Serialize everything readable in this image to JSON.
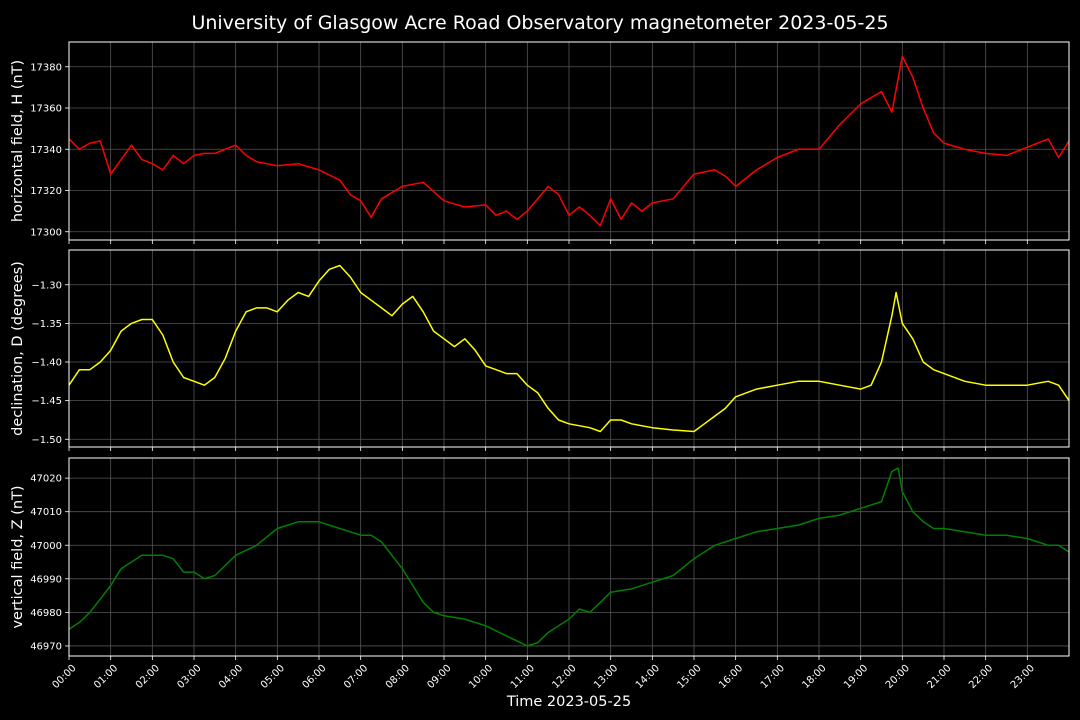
{
  "chart_data": {
    "type": "line",
    "title": "University of Glasgow Acre Road Observatory magnetometer 2023-05-25",
    "xlabel": "Time 2023-05-25",
    "x_ticks": [
      "00:00",
      "01:00",
      "02:00",
      "03:00",
      "04:00",
      "05:00",
      "06:00",
      "07:00",
      "08:00",
      "09:00",
      "10:00",
      "11:00",
      "12:00",
      "13:00",
      "14:00",
      "15:00",
      "16:00",
      "17:00",
      "18:00",
      "19:00",
      "20:00",
      "21:00",
      "22:00",
      "23:00"
    ],
    "xlim_hours": [
      0,
      24
    ],
    "grid": true,
    "panels": [
      {
        "ylabel": "horizontal field, H (nT)",
        "color": "#ff0000",
        "ylim": [
          17296,
          17392
        ],
        "yticks": [
          17300,
          17320,
          17340,
          17360,
          17380
        ],
        "ytick_labels": [
          "17300",
          "17320",
          "17340",
          "17360",
          "17380"
        ],
        "x": [
          0,
          0.25,
          0.5,
          0.75,
          1,
          1.25,
          1.5,
          1.75,
          2,
          2.25,
          2.5,
          2.75,
          3,
          3.25,
          3.5,
          4,
          4.25,
          4.5,
          5,
          5.5,
          6,
          6.5,
          6.75,
          7,
          7.25,
          7.5,
          8,
          8.5,
          9,
          9.5,
          10,
          10.25,
          10.5,
          10.75,
          11,
          11.5,
          11.75,
          12,
          12.25,
          12.5,
          12.75,
          13,
          13.25,
          13.5,
          13.75,
          14,
          14.5,
          15,
          15.5,
          15.75,
          16,
          16.5,
          17,
          17.5,
          18,
          18.5,
          19,
          19.25,
          19.5,
          19.75,
          20,
          20.25,
          20.5,
          20.75,
          21,
          21.5,
          22,
          22.5,
          23,
          23.5,
          23.75,
          24
        ],
        "values": [
          17345,
          17340,
          17343,
          17344,
          17328,
          17335,
          17342,
          17335,
          17333,
          17330,
          17337,
          17333,
          17337,
          17338,
          17338,
          17342,
          17337,
          17334,
          17332,
          17333,
          17330,
          17325,
          17318,
          17315,
          17307,
          17316,
          17322,
          17324,
          17315,
          17312,
          17313,
          17308,
          17310,
          17306,
          17310,
          17322,
          17318,
          17308,
          17312,
          17308,
          17303,
          17316,
          17306,
          17314,
          17310,
          17314,
          17316,
          17328,
          17330,
          17327,
          17322,
          17330,
          17336,
          17340,
          17340,
          17352,
          17362,
          17365,
          17368,
          17358,
          17385,
          17375,
          17360,
          17348,
          17343,
          17340,
          17338,
          17337,
          17341,
          17345,
          17336,
          17344
        ]
      },
      {
        "ylabel": "declination, D (degrees)",
        "color": "#ffff00",
        "ylim": [
          -1.51,
          -1.255
        ],
        "yticks": [
          -1.5,
          -1.45,
          -1.4,
          -1.35,
          -1.3
        ],
        "ytick_labels": [
          "−1.50",
          "−1.45",
          "−1.40",
          "−1.35",
          "−1.30"
        ],
        "x": [
          0,
          0.25,
          0.5,
          0.75,
          1,
          1.25,
          1.5,
          1.75,
          2,
          2.25,
          2.5,
          2.75,
          3,
          3.25,
          3.5,
          3.75,
          4,
          4.25,
          4.5,
          4.75,
          5,
          5.25,
          5.5,
          5.75,
          6,
          6.25,
          6.5,
          6.75,
          7,
          7.25,
          7.5,
          7.75,
          8,
          8.25,
          8.5,
          8.75,
          9,
          9.25,
          9.5,
          9.75,
          10,
          10.25,
          10.5,
          10.75,
          11,
          11.25,
          11.5,
          11.75,
          12,
          12.5,
          12.75,
          13,
          13.25,
          13.5,
          14,
          14.5,
          15,
          15.25,
          15.5,
          15.75,
          16,
          16.5,
          17,
          17.5,
          18,
          18.5,
          19,
          19.25,
          19.5,
          19.75,
          19.85,
          20,
          20.25,
          20.5,
          20.75,
          21,
          21.5,
          22,
          22.5,
          23,
          23.5,
          23.75,
          24
        ],
        "values": [
          -1.43,
          -1.41,
          -1.41,
          -1.4,
          -1.385,
          -1.36,
          -1.35,
          -1.345,
          -1.345,
          -1.365,
          -1.4,
          -1.42,
          -1.425,
          -1.43,
          -1.42,
          -1.395,
          -1.36,
          -1.335,
          -1.33,
          -1.33,
          -1.335,
          -1.32,
          -1.31,
          -1.315,
          -1.295,
          -1.28,
          -1.275,
          -1.29,
          -1.31,
          -1.32,
          -1.33,
          -1.34,
          -1.325,
          -1.315,
          -1.335,
          -1.36,
          -1.37,
          -1.38,
          -1.37,
          -1.385,
          -1.405,
          -1.41,
          -1.415,
          -1.415,
          -1.43,
          -1.44,
          -1.46,
          -1.475,
          -1.48,
          -1.485,
          -1.49,
          -1.475,
          -1.475,
          -1.48,
          -1.485,
          -1.488,
          -1.49,
          -1.48,
          -1.47,
          -1.46,
          -1.445,
          -1.435,
          -1.43,
          -1.425,
          -1.425,
          -1.43,
          -1.435,
          -1.43,
          -1.4,
          -1.34,
          -1.31,
          -1.35,
          -1.37,
          -1.4,
          -1.41,
          -1.415,
          -1.425,
          -1.43,
          -1.43,
          -1.43,
          -1.425,
          -1.43,
          -1.45
        ]
      },
      {
        "ylabel": "vertical field, Z (nT)",
        "color": "#008000",
        "ylim": [
          46967,
          47026
        ],
        "yticks": [
          46970,
          46980,
          46990,
          47000,
          47010,
          47020
        ],
        "ytick_labels": [
          "46970",
          "46980",
          "46990",
          "47000",
          "47010",
          "47020"
        ],
        "x": [
          0,
          0.25,
          0.5,
          0.75,
          1,
          1.25,
          1.5,
          1.75,
          2,
          2.25,
          2.5,
          2.75,
          3,
          3.25,
          3.5,
          3.75,
          4,
          4.5,
          5,
          5.5,
          6,
          6.5,
          7,
          7.25,
          7.5,
          7.75,
          8,
          8.25,
          8.5,
          8.75,
          9,
          9.5,
          10,
          10.5,
          11,
          11.25,
          11.5,
          12,
          12.25,
          12.5,
          12.75,
          13,
          13.5,
          14,
          14.5,
          15,
          15.5,
          16,
          16.5,
          17,
          17.5,
          18,
          18.5,
          19,
          19.5,
          19.75,
          19.9,
          20,
          20.25,
          20.5,
          20.75,
          21,
          21.5,
          22,
          22.5,
          23,
          23.5,
          23.75,
          24
        ],
        "values": [
          46975,
          46977,
          46980,
          46984,
          46988,
          46993,
          46995,
          46997,
          46997,
          46997,
          46996,
          46992,
          46992,
          46990,
          46991,
          46994,
          46997,
          47000,
          47005,
          47007,
          47007,
          47005,
          47003,
          47003,
          47001,
          46997,
          46993,
          46988,
          46983,
          46980,
          46979,
          46978,
          46976,
          46973,
          46970,
          46971,
          46974,
          46978,
          46981,
          46980,
          46983,
          46986,
          46987,
          46989,
          46991,
          46996,
          47000,
          47002,
          47004,
          47005,
          47006,
          47008,
          47009,
          47011,
          47013,
          47022,
          47023,
          47016,
          47010,
          47007,
          47005,
          47005,
          47004,
          47003,
          47003,
          47002,
          47000,
          47000,
          46998
        ]
      }
    ]
  }
}
